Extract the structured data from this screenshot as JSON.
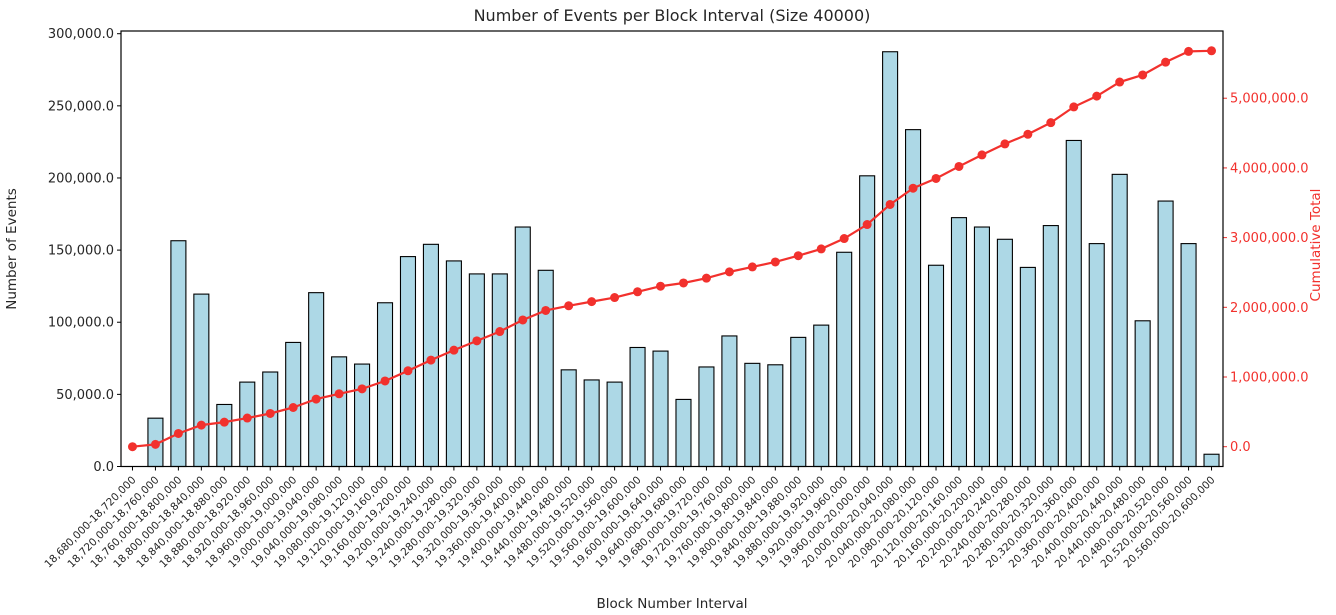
{
  "figure": {
    "background": "#ffffff"
  },
  "chart_data": {
    "type": "bar",
    "title": "Number of Events per Block Interval (Size 40000)",
    "xlabel": "Block Number Interval",
    "ylabel_left": "Number of Events",
    "ylabel_right": "Cumulative Total",
    "grid": false,
    "legend": "none",
    "categories": [
      "18,680,000-18,720,000",
      "18,720,000-18,760,000",
      "18,760,000-18,800,000",
      "18,800,000-18,840,000",
      "18,840,000-18,880,000",
      "18,880,000-18,920,000",
      "18,920,000-18,960,000",
      "18,960,000-19,000,000",
      "19,000,000-19,040,000",
      "19,040,000-19,080,000",
      "19,080,000-19,120,000",
      "19,120,000-19,160,000",
      "19,160,000-19,200,000",
      "19,200,000-19,240,000",
      "19,240,000-19,280,000",
      "19,280,000-19,320,000",
      "19,320,000-19,360,000",
      "19,360,000-19,400,000",
      "19,400,000-19,440,000",
      "19,440,000-19,480,000",
      "19,480,000-19,520,000",
      "19,520,000-19,560,000",
      "19,560,000-19,600,000",
      "19,600,000-19,640,000",
      "19,640,000-19,680,000",
      "19,680,000-19,720,000",
      "19,720,000-19,760,000",
      "19,760,000-19,800,000",
      "19,800,000-19,840,000",
      "19,840,000-19,880,000",
      "19,880,000-19,920,000",
      "19,920,000-19,960,000",
      "19,960,000-20,000,000",
      "20,000,000-20,040,000",
      "20,040,000-20,080,000",
      "20,080,000-20,120,000",
      "20,120,000-20,160,000",
      "20,160,000-20,200,000",
      "20,200,000-20,240,000",
      "20,240,000-20,280,000",
      "20,280,000-20,320,000",
      "20,320,000-20,360,000",
      "20,360,000-20,400,000",
      "20,400,000-20,440,000",
      "20,440,000-20,480,000",
      "20,480,000-20,520,000",
      "20,520,000-20,560,000",
      "20,560,000-20,600,000"
    ],
    "series": [
      {
        "name": "Number of Events",
        "type": "bar",
        "axis": "left",
        "color": "#ADD8E6",
        "edge_color": "#000000",
        "values": [
          0,
          33500,
          156500,
          119500,
          43000,
          58500,
          65500,
          86000,
          120500,
          76000,
          71000,
          113500,
          145500,
          154000,
          142500,
          133500,
          133500,
          166000,
          136000,
          67000,
          60000,
          58500,
          82500,
          80000,
          46500,
          69000,
          90500,
          71500,
          70500,
          89500,
          98000,
          148500,
          201500,
          287500,
          233500,
          139500,
          172500,
          166000,
          157500,
          138000,
          167000,
          226000,
          154500,
          202500,
          101000,
          184000,
          154500,
          8500
        ]
      },
      {
        "name": "Cumulative Total",
        "type": "line",
        "axis": "right",
        "color": "#f2312d",
        "marker": "circle",
        "values": [
          0,
          33500,
          190000,
          309500,
          352500,
          411000,
          476500,
          562500,
          683000,
          759000,
          830000,
          943500,
          1089000,
          1243000,
          1385500,
          1519000,
          1652500,
          1818500,
          1954500,
          2021500,
          2081500,
          2140000,
          2222500,
          2302500,
          2349000,
          2418000,
          2508500,
          2580000,
          2650500,
          2740000,
          2838000,
          2986500,
          3188000,
          3475500,
          3709000,
          3848500,
          4021000,
          4187000,
          4344500,
          4482500,
          4649500,
          4875500,
          5030000,
          5232500,
          5333500,
          5517500,
          5672000,
          5680500
        ]
      }
    ],
    "left_axis": {
      "tick_labels": [
        "0.0",
        "50,000.0",
        "100,000.0",
        "150,000.0",
        "200,000.0",
        "250,000.0",
        "300,000.0"
      ],
      "tick_values": [
        0,
        50000,
        100000,
        150000,
        200000,
        250000,
        300000
      ],
      "range": [
        0,
        301875
      ],
      "color": "#000000"
    },
    "right_axis": {
      "tick_labels": [
        "0.0",
        "1,000,000.0",
        "2,000,000.0",
        "3,000,000.0",
        "4,000,000.0",
        "5,000,000.0"
      ],
      "tick_values": [
        0,
        1000000,
        2000000,
        3000000,
        4000000,
        5000000
      ],
      "color": "#f2312d"
    }
  }
}
